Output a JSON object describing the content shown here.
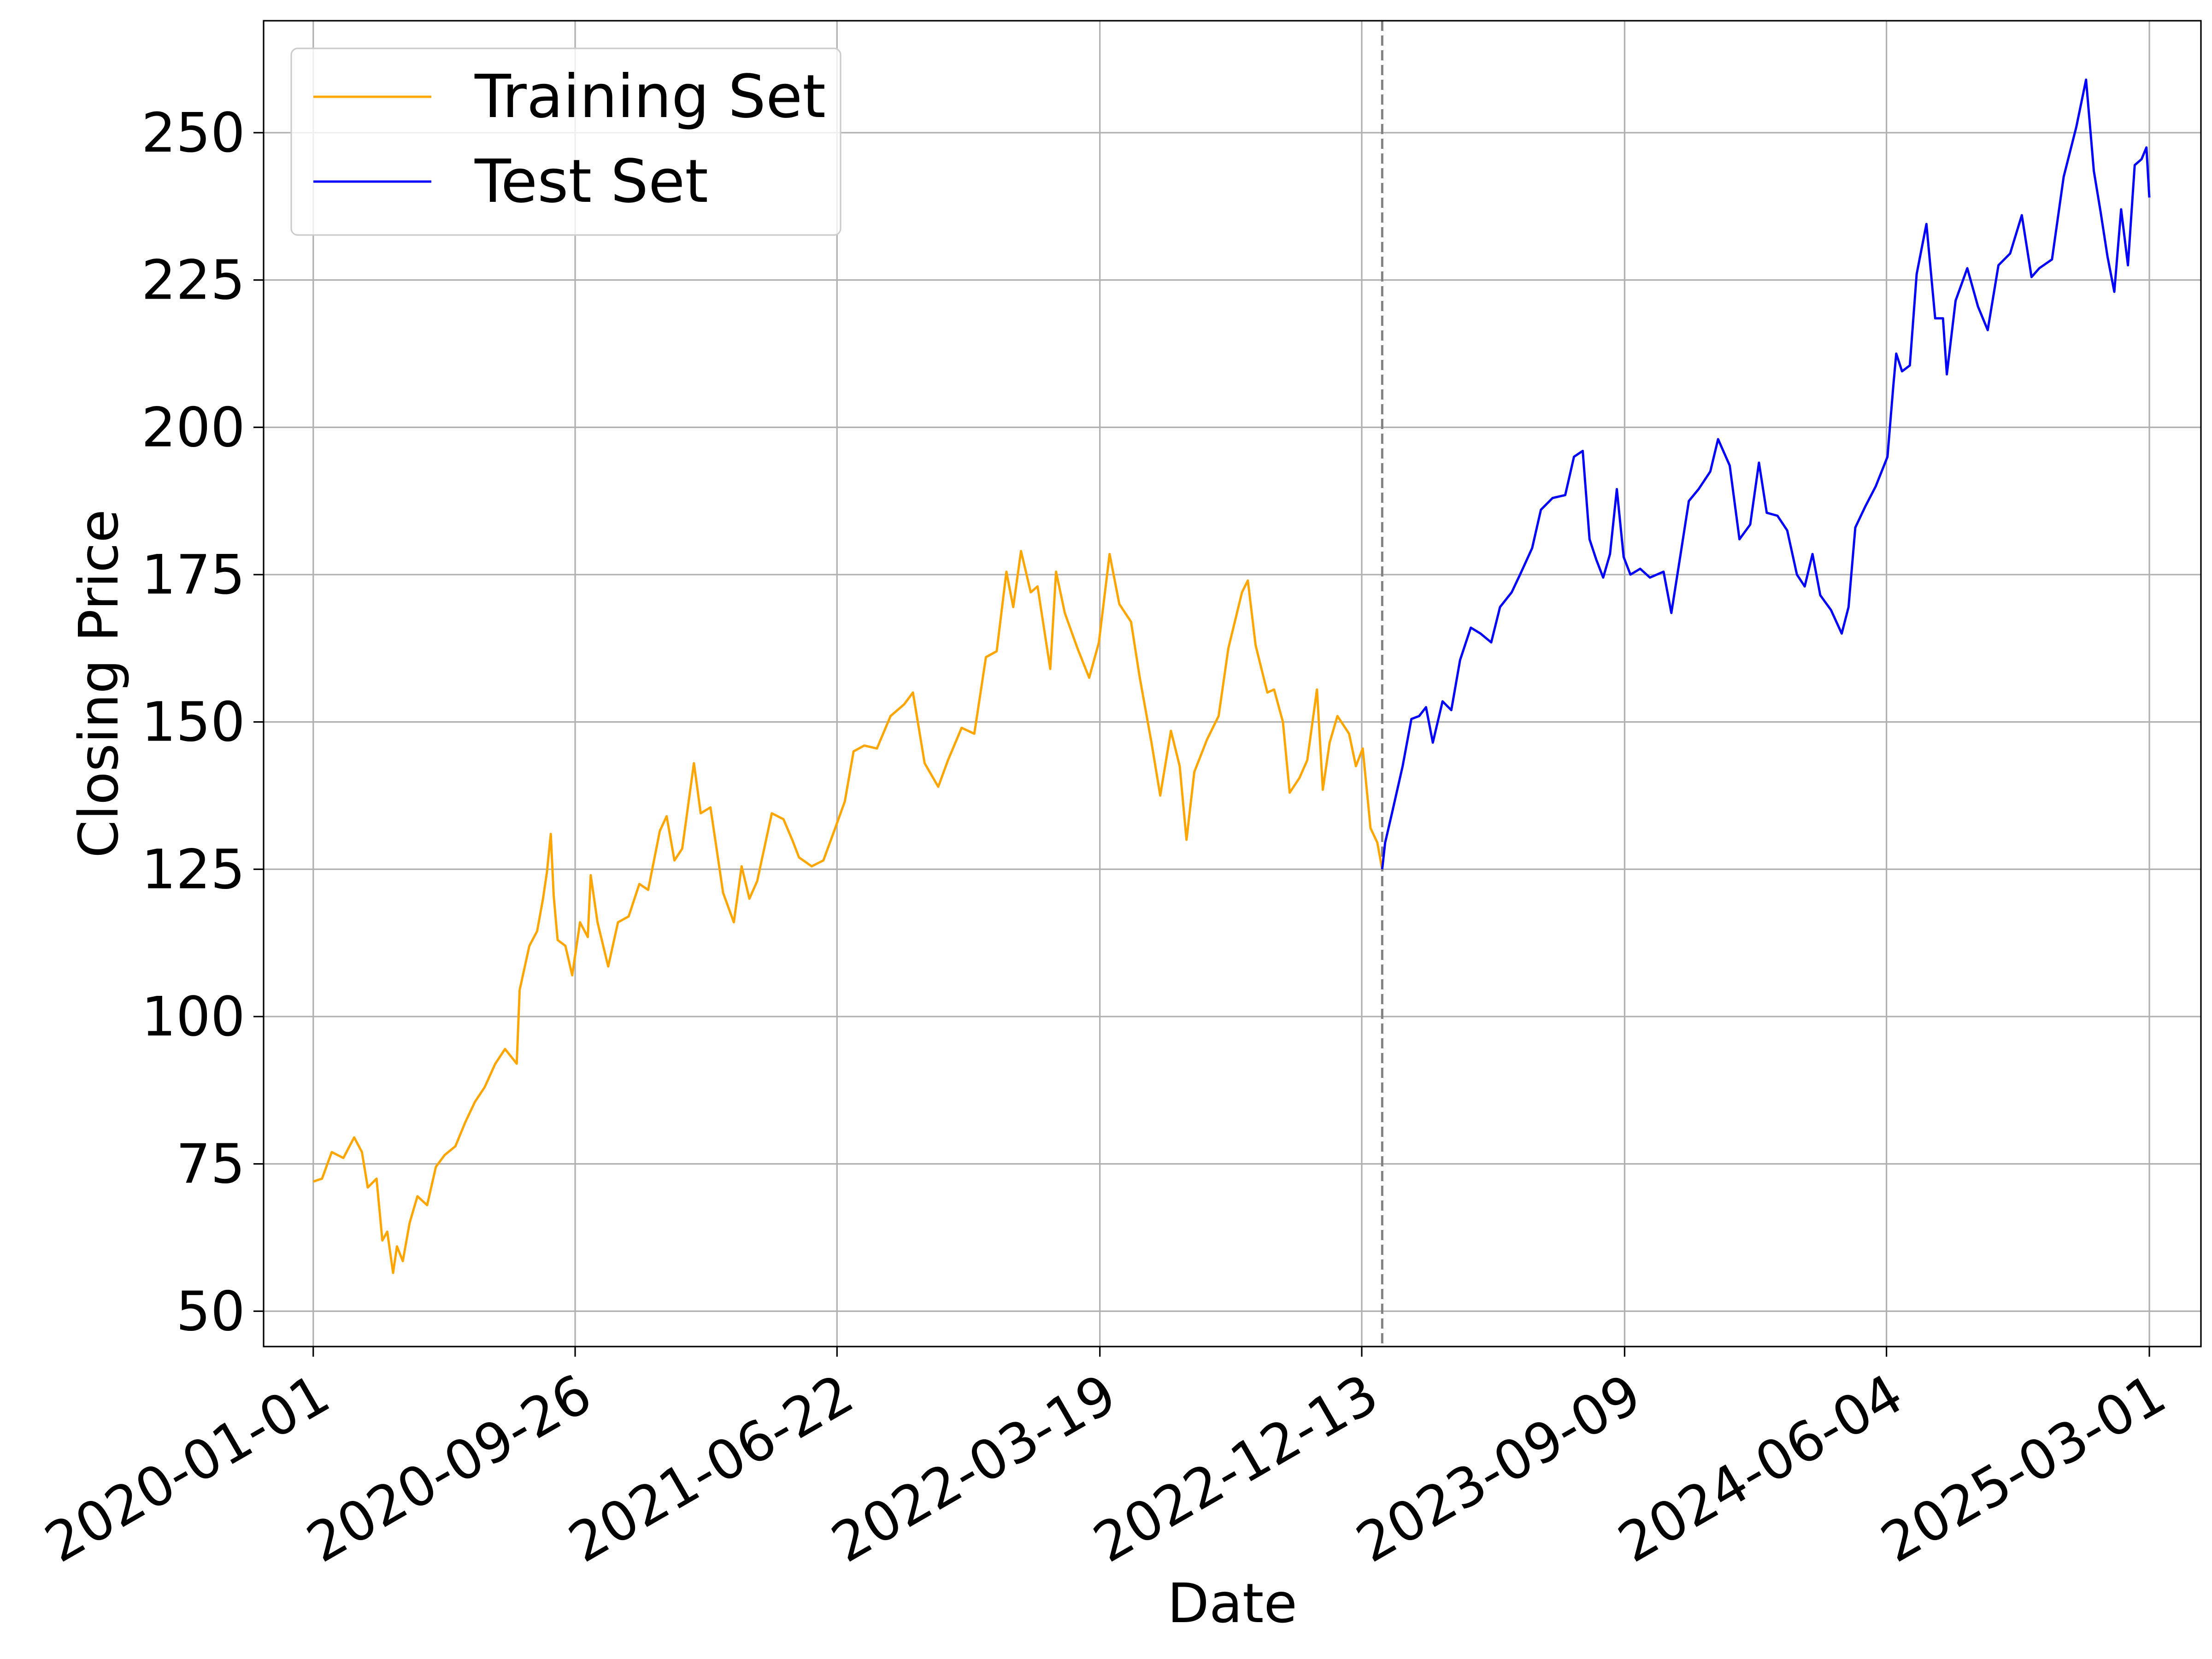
{
  "chart_data": {
    "type": "line",
    "title": "",
    "xlabel": "Date",
    "ylabel": "Closing Price",
    "grid": true,
    "legend_position": "upper-left",
    "xlim": [
      "2019-11-11",
      "2025-04-23"
    ],
    "ylim": [
      44,
      269
    ],
    "x_ticks": [
      "2020-01-01",
      "2020-09-26",
      "2021-06-22",
      "2022-03-19",
      "2022-12-13",
      "2023-09-09",
      "2024-06-04",
      "2025-03-01"
    ],
    "y_ticks": [
      50,
      75,
      100,
      125,
      150,
      175,
      200,
      225,
      250
    ],
    "split_date": "2023-01-03",
    "split_line_color": "#808080",
    "series": [
      {
        "name": "Training Set",
        "color": "#ffa500",
        "points": [
          [
            "2020-01-01",
            72.0
          ],
          [
            "2020-01-10",
            72.5
          ],
          [
            "2020-01-20",
            77.0
          ],
          [
            "2020-02-01",
            76.0
          ],
          [
            "2020-02-12",
            79.5
          ],
          [
            "2020-02-20",
            77.0
          ],
          [
            "2020-02-26",
            71.0
          ],
          [
            "2020-03-06",
            72.5
          ],
          [
            "2020-03-12",
            62.0
          ],
          [
            "2020-03-17",
            63.5
          ],
          [
            "2020-03-23",
            56.5
          ],
          [
            "2020-03-27",
            61.0
          ],
          [
            "2020-04-02",
            58.5
          ],
          [
            "2020-04-09",
            65.0
          ],
          [
            "2020-04-17",
            69.5
          ],
          [
            "2020-04-27",
            68.0
          ],
          [
            "2020-05-06",
            74.5
          ],
          [
            "2020-05-15",
            76.5
          ],
          [
            "2020-05-26",
            78.0
          ],
          [
            "2020-06-05",
            82.0
          ],
          [
            "2020-06-15",
            85.5
          ],
          [
            "2020-06-25",
            88.0
          ],
          [
            "2020-07-06",
            92.0
          ],
          [
            "2020-07-16",
            94.5
          ],
          [
            "2020-07-28",
            92.0
          ],
          [
            "2020-07-31",
            104.5
          ],
          [
            "2020-08-10",
            112.0
          ],
          [
            "2020-08-18",
            114.5
          ],
          [
            "2020-08-24",
            120.0
          ],
          [
            "2020-08-28",
            124.5
          ],
          [
            "2020-09-01",
            131.0
          ],
          [
            "2020-09-04",
            120.5
          ],
          [
            "2020-09-08",
            113.0
          ],
          [
            "2020-09-16",
            112.0
          ],
          [
            "2020-09-23",
            107.0
          ],
          [
            "2020-10-01",
            116.0
          ],
          [
            "2020-10-09",
            113.5
          ],
          [
            "2020-10-12",
            124.0
          ],
          [
            "2020-10-19",
            116.0
          ],
          [
            "2020-10-30",
            108.5
          ],
          [
            "2020-11-09",
            116.0
          ],
          [
            "2020-11-20",
            117.0
          ],
          [
            "2020-12-01",
            122.5
          ],
          [
            "2020-12-10",
            121.5
          ],
          [
            "2020-12-22",
            131.5
          ],
          [
            "2020-12-29",
            134.0
          ],
          [
            "2021-01-06",
            126.5
          ],
          [
            "2021-01-14",
            128.5
          ],
          [
            "2021-01-26",
            143.0
          ],
          [
            "2021-02-02",
            134.5
          ],
          [
            "2021-02-12",
            135.5
          ],
          [
            "2021-02-25",
            121.0
          ],
          [
            "2021-03-08",
            116.0
          ],
          [
            "2021-03-16",
            125.5
          ],
          [
            "2021-03-24",
            120.0
          ],
          [
            "2021-04-01",
            123.0
          ],
          [
            "2021-04-16",
            134.5
          ],
          [
            "2021-04-28",
            133.5
          ],
          [
            "2021-05-07",
            130.0
          ],
          [
            "2021-05-14",
            127.0
          ],
          [
            "2021-05-27",
            125.5
          ],
          [
            "2021-06-08",
            126.5
          ],
          [
            "2021-06-18",
            131.0
          ],
          [
            "2021-06-30",
            136.5
          ],
          [
            "2021-07-09",
            145.0
          ],
          [
            "2021-07-20",
            146.0
          ],
          [
            "2021-08-02",
            145.5
          ],
          [
            "2021-08-16",
            151.0
          ],
          [
            "2021-08-30",
            153.0
          ],
          [
            "2021-09-08",
            155.0
          ],
          [
            "2021-09-20",
            143.0
          ],
          [
            "2021-10-04",
            139.0
          ],
          [
            "2021-10-14",
            143.5
          ],
          [
            "2021-10-28",
            149.0
          ],
          [
            "2021-11-10",
            148.0
          ],
          [
            "2021-11-22",
            161.0
          ],
          [
            "2021-12-03",
            162.0
          ],
          [
            "2021-12-13",
            175.5
          ],
          [
            "2021-12-20",
            169.5
          ],
          [
            "2021-12-28",
            179.0
          ],
          [
            "2022-01-07",
            172.0
          ],
          [
            "2022-01-14",
            173.0
          ],
          [
            "2022-01-27",
            159.0
          ],
          [
            "2022-02-02",
            175.5
          ],
          [
            "2022-02-11",
            168.5
          ],
          [
            "2022-02-24",
            162.5
          ],
          [
            "2022-03-08",
            157.5
          ],
          [
            "2022-03-18",
            163.5
          ],
          [
            "2022-03-29",
            178.5
          ],
          [
            "2022-04-08",
            170.0
          ],
          [
            "2022-04-20",
            167.0
          ],
          [
            "2022-04-29",
            157.5
          ],
          [
            "2022-05-11",
            146.5
          ],
          [
            "2022-05-20",
            137.5
          ],
          [
            "2022-05-31",
            148.5
          ],
          [
            "2022-06-09",
            142.5
          ],
          [
            "2022-06-16",
            130.0
          ],
          [
            "2022-06-24",
            141.5
          ],
          [
            "2022-07-07",
            147.0
          ],
          [
            "2022-07-19",
            151.0
          ],
          [
            "2022-07-29",
            162.5
          ],
          [
            "2022-08-12",
            172.0
          ],
          [
            "2022-08-18",
            174.0
          ],
          [
            "2022-08-26",
            163.0
          ],
          [
            "2022-09-07",
            155.0
          ],
          [
            "2022-09-14",
            155.5
          ],
          [
            "2022-09-23",
            150.0
          ],
          [
            "2022-09-30",
            138.0
          ],
          [
            "2022-10-10",
            140.5
          ],
          [
            "2022-10-18",
            143.5
          ],
          [
            "2022-10-28",
            155.5
          ],
          [
            "2022-11-03",
            138.5
          ],
          [
            "2022-11-10",
            146.5
          ],
          [
            "2022-11-18",
            151.0
          ],
          [
            "2022-11-30",
            148.0
          ],
          [
            "2022-12-07",
            142.5
          ],
          [
            "2022-12-14",
            145.5
          ],
          [
            "2022-12-22",
            132.0
          ],
          [
            "2022-12-29",
            129.5
          ],
          [
            "2023-01-03",
            125.0
          ]
        ]
      },
      {
        "name": "Test Set",
        "color": "#0000ff",
        "points": [
          [
            "2023-01-03",
            125.0
          ],
          [
            "2023-01-06",
            129.5
          ],
          [
            "2023-01-13",
            134.5
          ],
          [
            "2023-01-24",
            142.5
          ],
          [
            "2023-02-02",
            150.5
          ],
          [
            "2023-02-10",
            151.0
          ],
          [
            "2023-02-17",
            152.5
          ],
          [
            "2023-02-24",
            146.5
          ],
          [
            "2023-03-06",
            153.5
          ],
          [
            "2023-03-15",
            152.0
          ],
          [
            "2023-03-24",
            160.5
          ],
          [
            "2023-04-04",
            166.0
          ],
          [
            "2023-04-14",
            165.0
          ],
          [
            "2023-04-25",
            163.5
          ],
          [
            "2023-05-04",
            169.5
          ],
          [
            "2023-05-16",
            172.0
          ],
          [
            "2023-05-26",
            175.5
          ],
          [
            "2023-06-06",
            179.5
          ],
          [
            "2023-06-15",
            186.0
          ],
          [
            "2023-06-27",
            188.0
          ],
          [
            "2023-07-10",
            188.5
          ],
          [
            "2023-07-19",
            195.0
          ],
          [
            "2023-07-28",
            196.0
          ],
          [
            "2023-08-04",
            181.0
          ],
          [
            "2023-08-11",
            177.5
          ],
          [
            "2023-08-18",
            174.5
          ],
          [
            "2023-08-25",
            178.5
          ],
          [
            "2023-09-01",
            189.5
          ],
          [
            "2023-09-08",
            178.0
          ],
          [
            "2023-09-15",
            175.0
          ],
          [
            "2023-09-25",
            176.0
          ],
          [
            "2023-10-05",
            174.5
          ],
          [
            "2023-10-19",
            175.5
          ],
          [
            "2023-10-27",
            168.5
          ],
          [
            "2023-11-06",
            179.0
          ],
          [
            "2023-11-14",
            187.5
          ],
          [
            "2023-11-24",
            189.5
          ],
          [
            "2023-12-06",
            192.5
          ],
          [
            "2023-12-14",
            198.0
          ],
          [
            "2023-12-26",
            193.5
          ],
          [
            "2024-01-05",
            181.0
          ],
          [
            "2024-01-16",
            183.5
          ],
          [
            "2024-01-25",
            194.0
          ],
          [
            "2024-02-02",
            185.5
          ],
          [
            "2024-02-13",
            185.0
          ],
          [
            "2024-02-23",
            182.5
          ],
          [
            "2024-03-04",
            175.0
          ],
          [
            "2024-03-12",
            173.0
          ],
          [
            "2024-03-20",
            178.5
          ],
          [
            "2024-03-28",
            171.5
          ],
          [
            "2024-04-08",
            169.0
          ],
          [
            "2024-04-19",
            165.0
          ],
          [
            "2024-04-26",
            169.5
          ],
          [
            "2024-05-03",
            183.0
          ],
          [
            "2024-05-13",
            186.5
          ],
          [
            "2024-05-24",
            190.0
          ],
          [
            "2024-06-05",
            195.0
          ],
          [
            "2024-06-11",
            207.0
          ],
          [
            "2024-06-14",
            212.5
          ],
          [
            "2024-06-20",
            209.5
          ],
          [
            "2024-06-28",
            210.5
          ],
          [
            "2024-07-05",
            226.0
          ],
          [
            "2024-07-15",
            234.5
          ],
          [
            "2024-07-24",
            218.5
          ],
          [
            "2024-08-01",
            218.5
          ],
          [
            "2024-08-05",
            209.0
          ],
          [
            "2024-08-14",
            221.5
          ],
          [
            "2024-08-26",
            227.0
          ],
          [
            "2024-09-06",
            220.5
          ],
          [
            "2024-09-16",
            216.5
          ],
          [
            "2024-09-27",
            227.5
          ],
          [
            "2024-10-09",
            229.5
          ],
          [
            "2024-10-21",
            236.0
          ],
          [
            "2024-10-31",
            225.5
          ],
          [
            "2024-11-08",
            227.0
          ],
          [
            "2024-11-21",
            228.5
          ],
          [
            "2024-12-03",
            242.5
          ],
          [
            "2024-12-16",
            251.0
          ],
          [
            "2024-12-26",
            259.0
          ],
          [
            "2025-01-03",
            243.5
          ],
          [
            "2025-01-10",
            236.5
          ],
          [
            "2025-01-17",
            229.0
          ],
          [
            "2025-01-24",
            223.0
          ],
          [
            "2025-01-31",
            237.0
          ],
          [
            "2025-02-07",
            227.5
          ],
          [
            "2025-02-14",
            244.5
          ],
          [
            "2025-02-21",
            245.5
          ],
          [
            "2025-02-26",
            247.5
          ],
          [
            "2025-03-01",
            239.0
          ]
        ]
      }
    ]
  }
}
